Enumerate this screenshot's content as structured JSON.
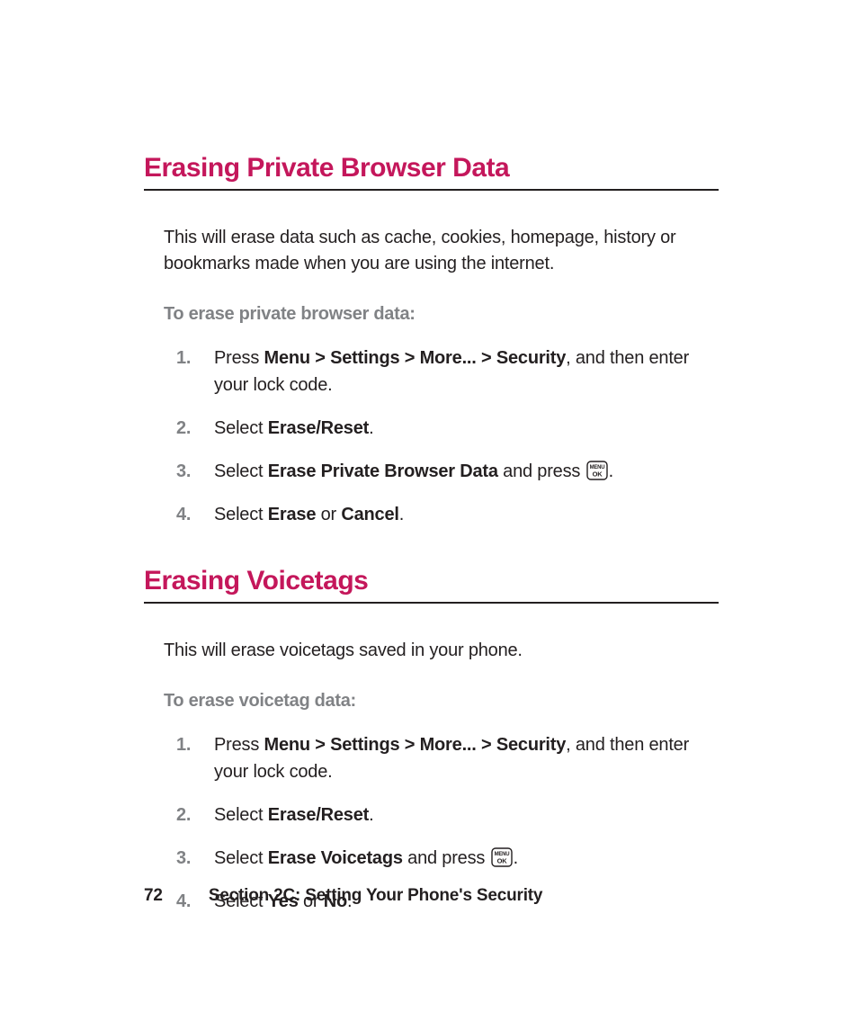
{
  "colors": {
    "heading": "#c4175b",
    "subhead": "#808285",
    "text": "#231f20",
    "rule": "#231f20",
    "background": "#ffffff"
  },
  "sections": [
    {
      "heading": "Erasing Private Browser Data",
      "intro": "This will erase data such as cache, cookies, homepage, history or bookmarks made when you are using the internet.",
      "subhead": "To erase private browser data:",
      "steps": [
        {
          "num": "1.",
          "parts": [
            {
              "t": "Press ",
              "b": false
            },
            {
              "t": "Menu > Settings > More... > Security",
              "b": true
            },
            {
              "t": ", and then enter your lock code.",
              "b": false
            }
          ]
        },
        {
          "num": "2.",
          "parts": [
            {
              "t": "Select ",
              "b": false
            },
            {
              "t": "Erase/Reset",
              "b": true
            },
            {
              "t": ".",
              "b": false
            }
          ]
        },
        {
          "num": "3.",
          "parts": [
            {
              "t": "Select ",
              "b": false
            },
            {
              "t": "Erase Private Browser Data",
              "b": true
            },
            {
              "t": " and press ",
              "b": false
            },
            {
              "key": "menu-ok"
            },
            {
              "t": ".",
              "b": false
            }
          ]
        },
        {
          "num": "4.",
          "parts": [
            {
              "t": "Select ",
              "b": false
            },
            {
              "t": "Erase",
              "b": true
            },
            {
              "t": " or ",
              "b": false
            },
            {
              "t": "Cancel",
              "b": true
            },
            {
              "t": ".",
              "b": false
            }
          ]
        }
      ]
    },
    {
      "heading": "Erasing Voicetags",
      "intro": "This will erase voicetags saved in your phone.",
      "subhead": "To erase voicetag data:",
      "steps": [
        {
          "num": "1.",
          "parts": [
            {
              "t": "Press ",
              "b": false
            },
            {
              "t": "Menu > Settings > More... > Security",
              "b": true
            },
            {
              "t": ", and then enter your lock code.",
              "b": false
            }
          ]
        },
        {
          "num": "2.",
          "parts": [
            {
              "t": "Select ",
              "b": false
            },
            {
              "t": "Erase/Reset",
              "b": true
            },
            {
              "t": ".",
              "b": false
            }
          ]
        },
        {
          "num": "3.",
          "parts": [
            {
              "t": "Select ",
              "b": false
            },
            {
              "t": "Erase Voicetags",
              "b": true
            },
            {
              "t": " and press ",
              "b": false
            },
            {
              "key": "menu-ok"
            },
            {
              "t": ".",
              "b": false
            }
          ]
        },
        {
          "num": "4.",
          "parts": [
            {
              "t": "Select ",
              "b": false
            },
            {
              "t": "Yes",
              "b": true
            },
            {
              "t": " or ",
              "b": false
            },
            {
              "t": "No",
              "b": true
            },
            {
              "t": ".",
              "b": false
            }
          ]
        }
      ]
    }
  ],
  "footer": {
    "page_number": "72",
    "section_label": "Section 2C: Setting Your Phone's Security"
  },
  "key_icon": {
    "top_label": "MENU",
    "bottom_label": "OK",
    "width": 24,
    "height": 22,
    "stroke": "#231f20"
  }
}
